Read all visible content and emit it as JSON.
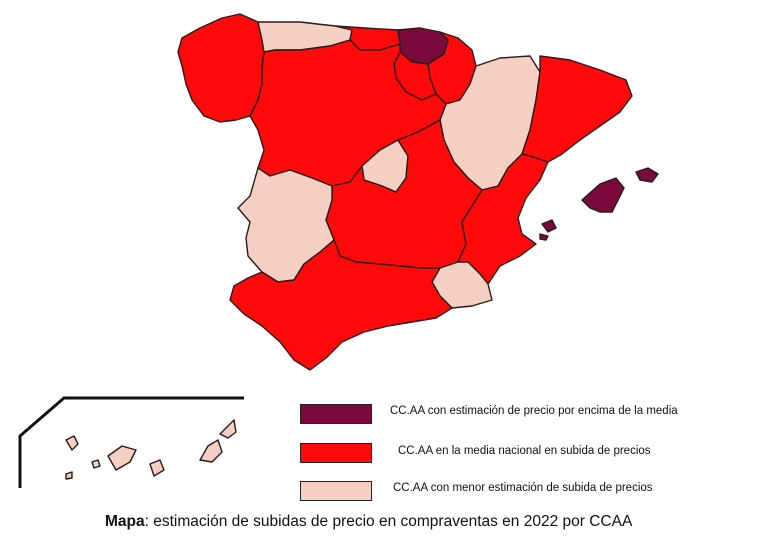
{
  "colors": {
    "above": "#7a0a3c",
    "average": "#ff0a0a",
    "below": "#f5cfc2",
    "border": "#2a1a1a"
  },
  "legend": [
    {
      "key": "above",
      "label": "CC.AA con estimación de precio por encima de la media"
    },
    {
      "key": "average",
      "label": "CC.AA en la media nacional en subida de precios"
    },
    {
      "key": "below",
      "label": "CC.AA con menor estimación de subida de precios"
    }
  ],
  "caption": {
    "bold": "Mapa",
    "text": ": estimación de subidas de precio en compraventas en 2022 por CCAA"
  },
  "regions": [
    {
      "name": "Galicia",
      "category": "average"
    },
    {
      "name": "Asturias",
      "category": "below"
    },
    {
      "name": "Cantabria",
      "category": "average"
    },
    {
      "name": "País Vasco",
      "category": "above"
    },
    {
      "name": "Navarra",
      "category": "average"
    },
    {
      "name": "La Rioja",
      "category": "average"
    },
    {
      "name": "Aragón",
      "category": "below"
    },
    {
      "name": "Cataluña",
      "category": "average"
    },
    {
      "name": "Castilla y León",
      "category": "average"
    },
    {
      "name": "Madrid",
      "category": "below"
    },
    {
      "name": "Castilla-La Mancha",
      "category": "average"
    },
    {
      "name": "Extremadura",
      "category": "below"
    },
    {
      "name": "Comunidad Valenciana",
      "category": "average"
    },
    {
      "name": "Murcia",
      "category": "below"
    },
    {
      "name": "Andalucía",
      "category": "average"
    },
    {
      "name": "Islas Baleares",
      "category": "above"
    },
    {
      "name": "Canarias",
      "category": "below"
    }
  ]
}
